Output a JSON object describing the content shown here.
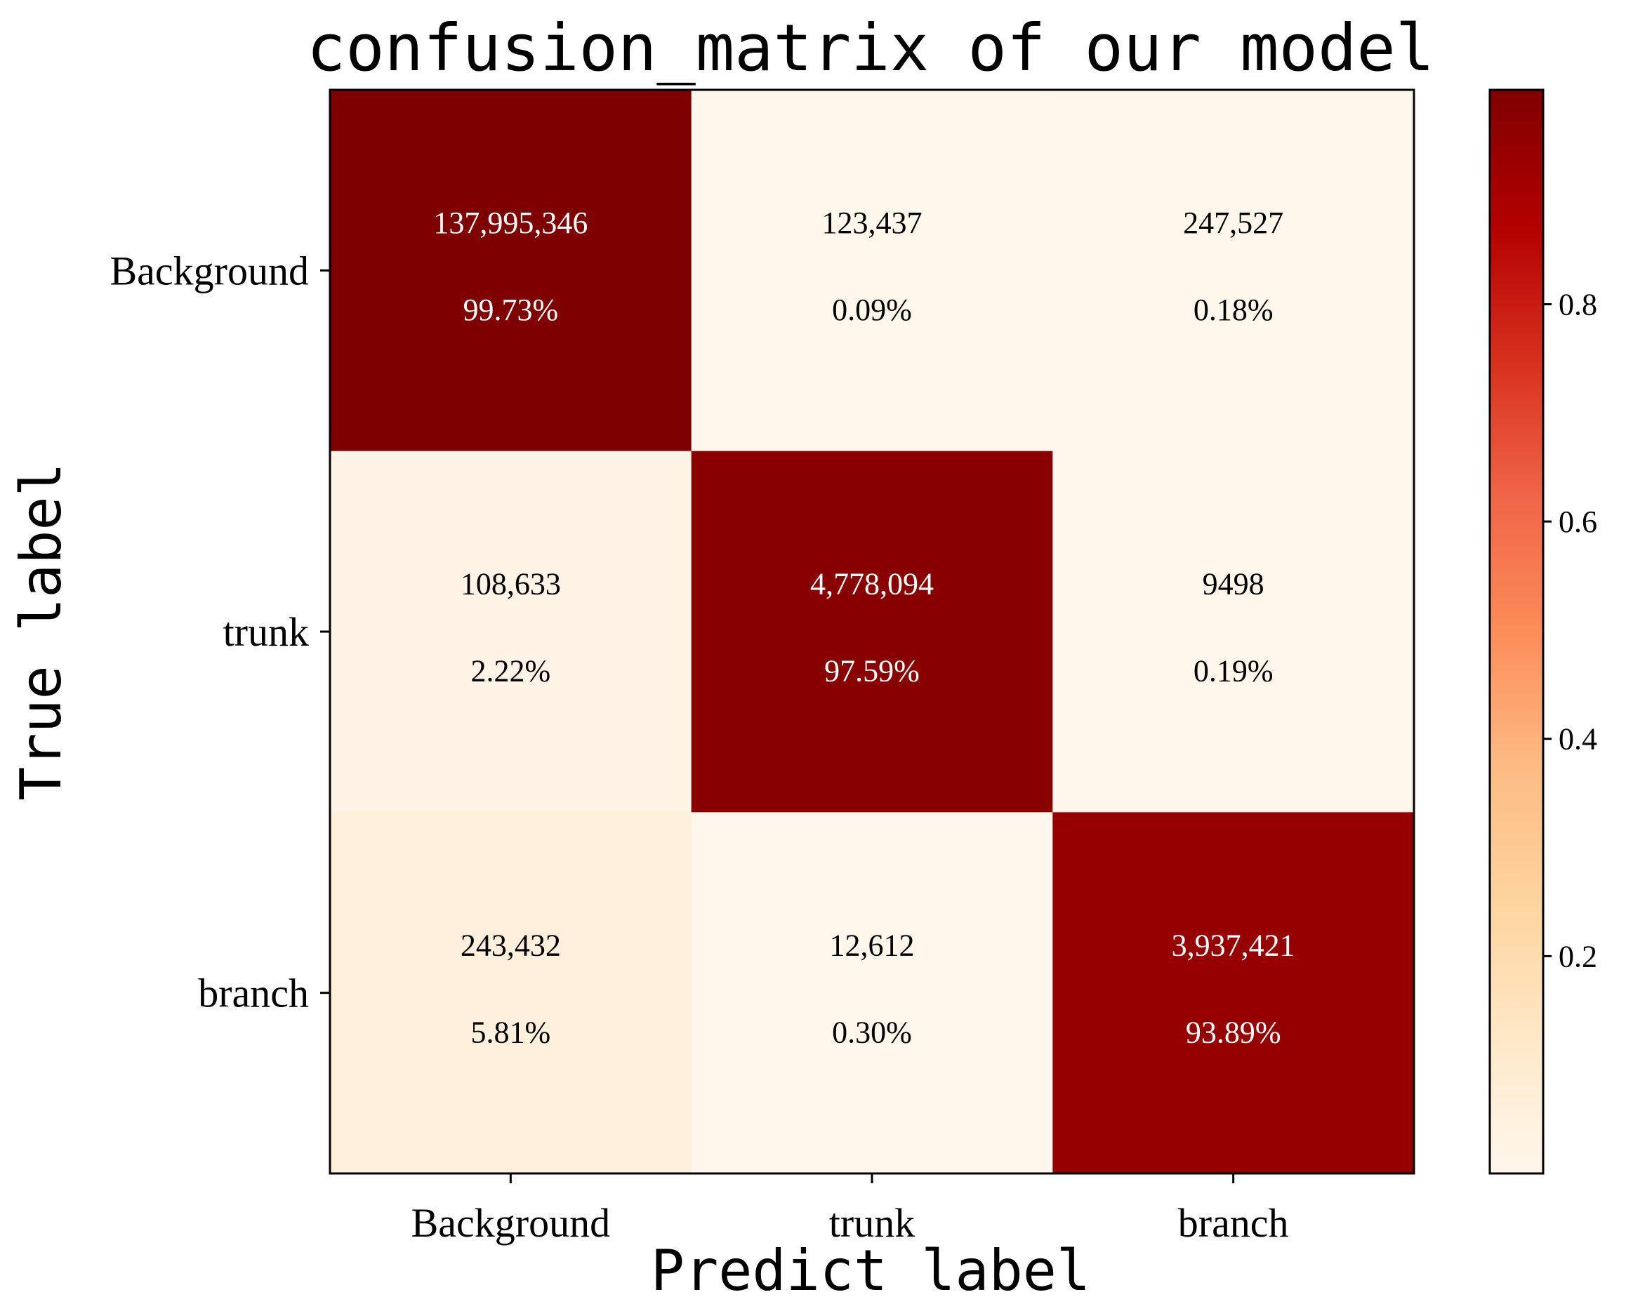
{
  "chart_data": {
    "type": "heatmap",
    "title": "confusion_matrix of our model",
    "xlabel": "Predict label",
    "ylabel": "True label",
    "x_categories": [
      "Background",
      "trunk",
      "branch"
    ],
    "y_categories": [
      "Background",
      "trunk",
      "branch"
    ],
    "counts": [
      [
        "137,995,346",
        "123,437",
        "247,527"
      ],
      [
        "108,633",
        "4,778,094",
        "9498"
      ],
      [
        "243,432",
        "12,612",
        "3,937,421"
      ]
    ],
    "percents": [
      [
        "99.73%",
        "0.09%",
        "0.18%"
      ],
      [
        "2.22%",
        "97.59%",
        "0.19%"
      ],
      [
        "5.81%",
        "0.30%",
        "93.89%"
      ]
    ],
    "values": [
      [
        0.9973,
        0.0009,
        0.0018
      ],
      [
        0.0222,
        0.9759,
        0.0019
      ],
      [
        0.0581,
        0.003,
        0.9389
      ]
    ],
    "colorbar": {
      "range": [
        0.0,
        0.9973
      ],
      "ticks": [
        "0.2",
        "0.4",
        "0.6",
        "0.8"
      ],
      "colormap": "OrRd",
      "stops": [
        "#fff7ec",
        "#fee8c8",
        "#fdd49e",
        "#fdbb84",
        "#fc8d59",
        "#ef6548",
        "#d7301f",
        "#b30000",
        "#7f0000"
      ]
    },
    "legend": "colorbar-right",
    "grid": false
  }
}
